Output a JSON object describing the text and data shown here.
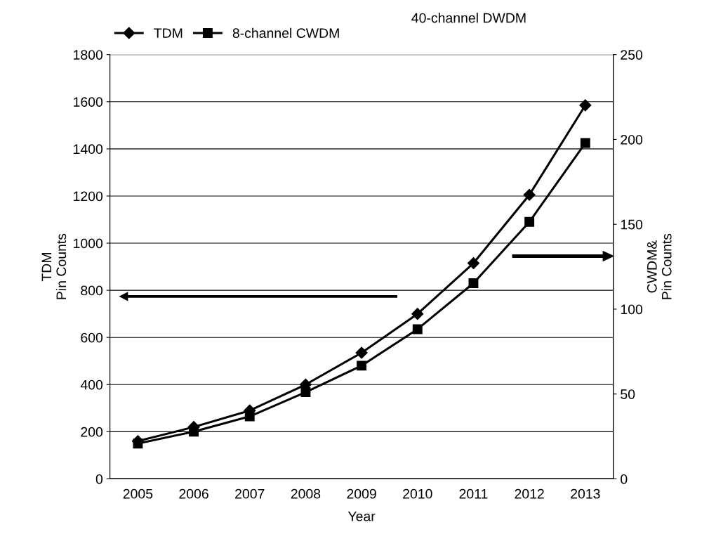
{
  "chart_data": {
    "type": "line",
    "xlabel": "Year",
    "ylabel": "TDM\nPin Counts",
    "y2label": "CWDM&\nPin Counts",
    "categories": [
      "2005",
      "2006",
      "2007",
      "2008",
      "2009",
      "2010",
      "2011",
      "2012",
      "2013"
    ],
    "series": [
      {
        "name": "TDM",
        "color": "#000000",
        "marker": "diamond",
        "values": [
          160,
          220,
          290,
          400,
          535,
          700,
          915,
          1205,
          1585
        ]
      },
      {
        "name": "8-channel CWDM",
        "color": "#000000",
        "marker": "square",
        "axis": "y2",
        "values": [
          20.8,
          27.8,
          36.8,
          51.1,
          66.7,
          88.2,
          115.3,
          151.4,
          197.9
        ]
      }
    ],
    "ylim": [
      0,
      1800
    ],
    "yticks": [
      0,
      200,
      400,
      600,
      800,
      1000,
      1200,
      1400,
      1600,
      1800
    ],
    "y2lim": [
      0,
      250
    ],
    "y2ticks": [
      0,
      50,
      100,
      150,
      200,
      250
    ],
    "grid": "y",
    "legend": "top",
    "line_style": "solid",
    "annotations": [
      "40-channel DWDM"
    ]
  }
}
